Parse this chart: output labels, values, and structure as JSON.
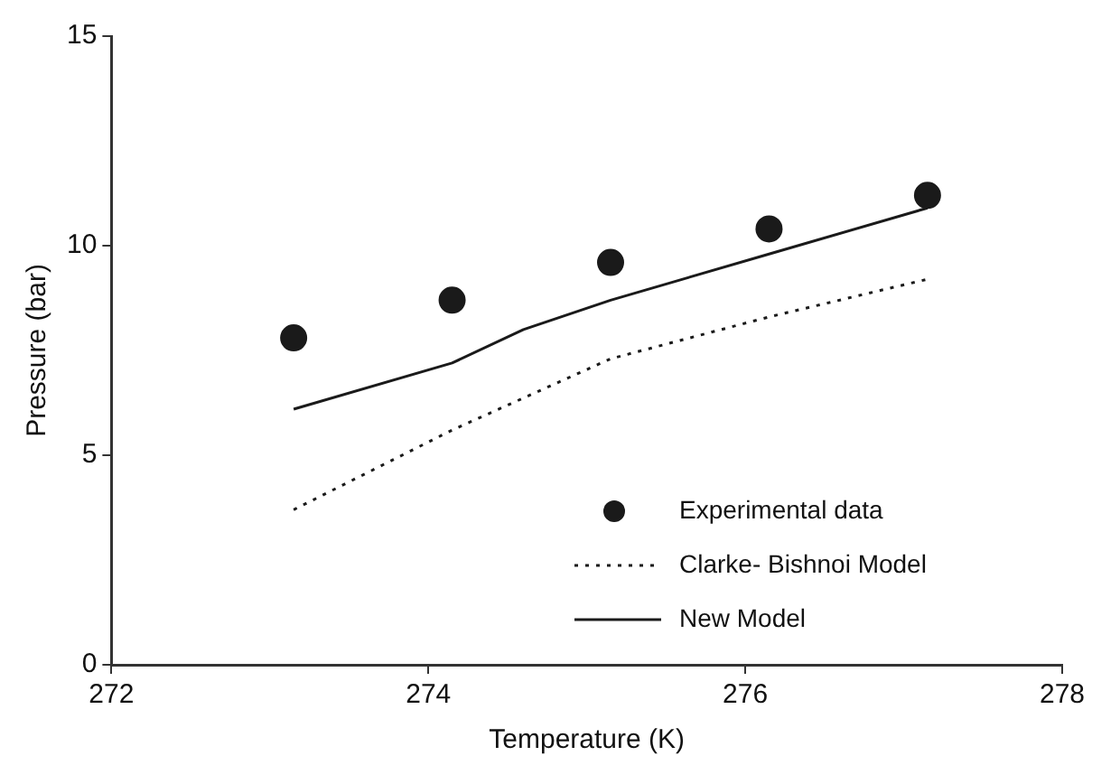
{
  "chart_data": {
    "type": "line",
    "xlabel": "Temperature (K)",
    "ylabel": "Pressure (bar)",
    "xlim": [
      272,
      278
    ],
    "xticks": [
      272,
      274,
      276,
      278
    ],
    "ylim": [
      0,
      15
    ],
    "yticks": [
      0,
      5,
      10,
      15
    ],
    "grid": false,
    "legend": "bottom right",
    "series": [
      {
        "name": "Experimental data",
        "type": "scatter",
        "marker": "circle",
        "color": "#1a1a1a",
        "x": [
          273.15,
          274.15,
          275.15,
          276.15,
          277.15
        ],
        "values": [
          7.8,
          8.7,
          9.6,
          10.4,
          11.2
        ]
      },
      {
        "name": "Clarke- Bishnoi Model",
        "type": "line",
        "line_style": "dotted",
        "marker": "none",
        "color": "#1a1a1a",
        "x": [
          273.15,
          274.15,
          275.15,
          276.15,
          277.15
        ],
        "values": [
          3.7,
          5.6,
          7.3,
          8.3,
          9.2
        ]
      },
      {
        "name": "New Model",
        "type": "line",
        "line_style": "solid",
        "marker": "none",
        "color": "#1a1a1a",
        "x": [
          273.15,
          274.15,
          274.6,
          275.15,
          276.15,
          277.15
        ],
        "values": [
          6.1,
          7.2,
          8.0,
          8.7,
          9.8,
          10.9
        ]
      }
    ]
  }
}
